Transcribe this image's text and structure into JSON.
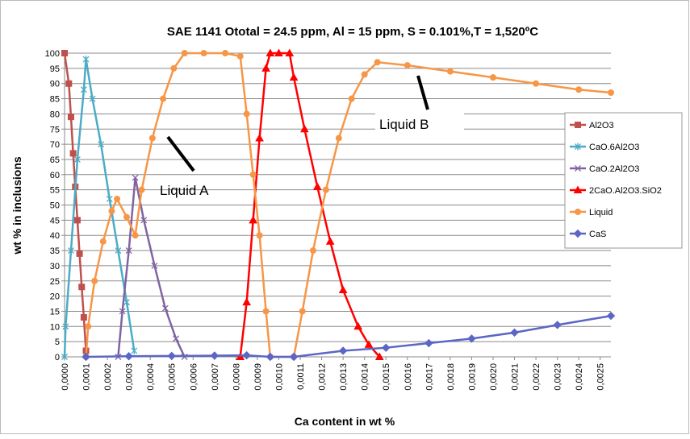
{
  "chart_data": {
    "type": "line",
    "title": "SAE 1141 Ototal = 24.5 ppm, Al = 15 ppm, S = 0.101%,T = 1,520ºC",
    "x_label": "Ca content in wt %",
    "y_label": "wt % in inclusions",
    "annotations": [
      "Liquid A",
      "Liquid B"
    ],
    "xlim": [
      0,
      0.00255
    ],
    "ylim": [
      0,
      100
    ],
    "grid": true,
    "legend": "right",
    "yticks": [
      0,
      5,
      10,
      15,
      20,
      25,
      30,
      35,
      40,
      45,
      50,
      55,
      60,
      65,
      70,
      75,
      80,
      85,
      90,
      95,
      100
    ],
    "xticks": [
      {
        "value": 0,
        "label": "0,0000"
      },
      {
        "value": 0.0001,
        "label": "0,0001"
      },
      {
        "value": 0.0002,
        "label": "0,0002"
      },
      {
        "value": 0.0003,
        "label": "0,0003"
      },
      {
        "value": 0.0004,
        "label": "0,0004"
      },
      {
        "value": 0.0005,
        "label": "0,0005"
      },
      {
        "value": 0.0006,
        "label": "0,0006"
      },
      {
        "value": 0.0007,
        "label": "0,0007"
      },
      {
        "value": 0.0008,
        "label": "0,0008"
      },
      {
        "value": 0.0009,
        "label": "0,0009"
      },
      {
        "value": 0.001,
        "label": "0,0010"
      },
      {
        "value": 0.0011,
        "label": "0,0011"
      },
      {
        "value": 0.0012,
        "label": "0,0012"
      },
      {
        "value": 0.0013,
        "label": "0,0013"
      },
      {
        "value": 0.0014,
        "label": "0,0014"
      },
      {
        "value": 0.0015,
        "label": "0,0015"
      },
      {
        "value": 0.0016,
        "label": "0,0016"
      },
      {
        "value": 0.0017,
        "label": "0,0017"
      },
      {
        "value": 0.0018,
        "label": "0,0018"
      },
      {
        "value": 0.0019,
        "label": "0,0019"
      },
      {
        "value": 0.002,
        "label": "0,0020"
      },
      {
        "value": 0.0021,
        "label": "0,0021"
      },
      {
        "value": 0.0022,
        "label": "0,0022"
      },
      {
        "value": 0.0023,
        "label": "0,0023"
      },
      {
        "value": 0.0024,
        "label": "0,0024"
      },
      {
        "value": 0.0025,
        "label": "0,0025"
      }
    ],
    "series": [
      {
        "name": "Al2O3",
        "color": "#c0504d",
        "marker": "square",
        "x": [
          0,
          2e-05,
          3e-05,
          4e-05,
          5e-05,
          6e-05,
          7e-05,
          8e-05,
          9e-05,
          0.0001
        ],
        "values": [
          100,
          90,
          79,
          67,
          56,
          45,
          34,
          23,
          13,
          2
        ]
      },
      {
        "name": "CaO.6Al2O3",
        "color": "#4bacc6",
        "marker": "star",
        "x": [
          0,
          5e-06,
          3e-05,
          6e-05,
          9e-05,
          0.0001,
          0.00013,
          0.00017,
          0.00021,
          0.00025,
          0.00029,
          0.000325
        ],
        "values": [
          0,
          10,
          35,
          65,
          88,
          98,
          85,
          70,
          52,
          35,
          18,
          2
        ]
      },
      {
        "name": "CaO.2Al2O3",
        "color": "#8064a2",
        "marker": "x",
        "x": [
          0.00025,
          0.00027,
          0.0003,
          0.00033,
          0.00037,
          0.00042,
          0.00047,
          0.00052,
          0.00056
        ],
        "values": [
          0,
          15,
          35,
          59,
          45,
          30,
          16,
          6,
          0
        ]
      },
      {
        "name": "2CaO.Al2O3.SiO2",
        "color": "#ff0000",
        "marker": "triangle",
        "x": [
          0.00082,
          0.00085,
          0.00088,
          0.00091,
          0.00094,
          0.00096,
          0.001,
          0.00105,
          0.00107,
          0.00112,
          0.00118,
          0.00124,
          0.0013,
          0.00137,
          0.00142,
          0.00147
        ],
        "values": [
          0,
          18,
          45,
          72,
          95,
          100,
          100,
          100,
          92,
          75,
          56,
          38,
          22,
          10,
          4,
          0
        ]
      },
      {
        "name": "Liquid",
        "color": "#f79646",
        "marker": "circle",
        "x": [
          0.0001,
          0.00011,
          0.00014,
          0.00018,
          0.00022,
          0.000245,
          0.00029,
          0.00033,
          0.00036,
          0.00041,
          0.00046,
          0.00051,
          0.00056,
          0.00065,
          0.00075,
          0.00082,
          0.00085,
          0.00088,
          0.00091,
          0.00094,
          0.00096,
          0.00107,
          0.00111,
          0.00116,
          0.00122,
          0.00128,
          0.00134,
          0.0014,
          0.00146,
          0.0016,
          0.0018,
          0.002,
          0.0022,
          0.0024,
          0.00255
        ],
        "values": [
          0,
          10,
          25,
          38,
          48,
          52,
          46,
          40,
          55,
          72,
          85,
          95,
          100,
          100,
          100,
          99,
          80,
          60,
          40,
          15,
          0,
          0,
          15,
          35,
          55,
          72,
          85,
          93,
          97,
          96,
          94,
          92,
          90,
          88,
          87
        ]
      },
      {
        "name": "CaS",
        "color": "#5b66c6",
        "marker": "diamond",
        "x": [
          0.0001,
          0.0003,
          0.0005,
          0.0007,
          0.00085,
          0.00096,
          0.00107,
          0.0013,
          0.0015,
          0.0017,
          0.0019,
          0.0021,
          0.0023,
          0.00255
        ],
        "values": [
          0,
          0.2,
          0.3,
          0.4,
          0.5,
          0,
          0,
          2,
          3,
          4.5,
          6,
          8,
          10.5,
          13.5
        ]
      }
    ]
  }
}
